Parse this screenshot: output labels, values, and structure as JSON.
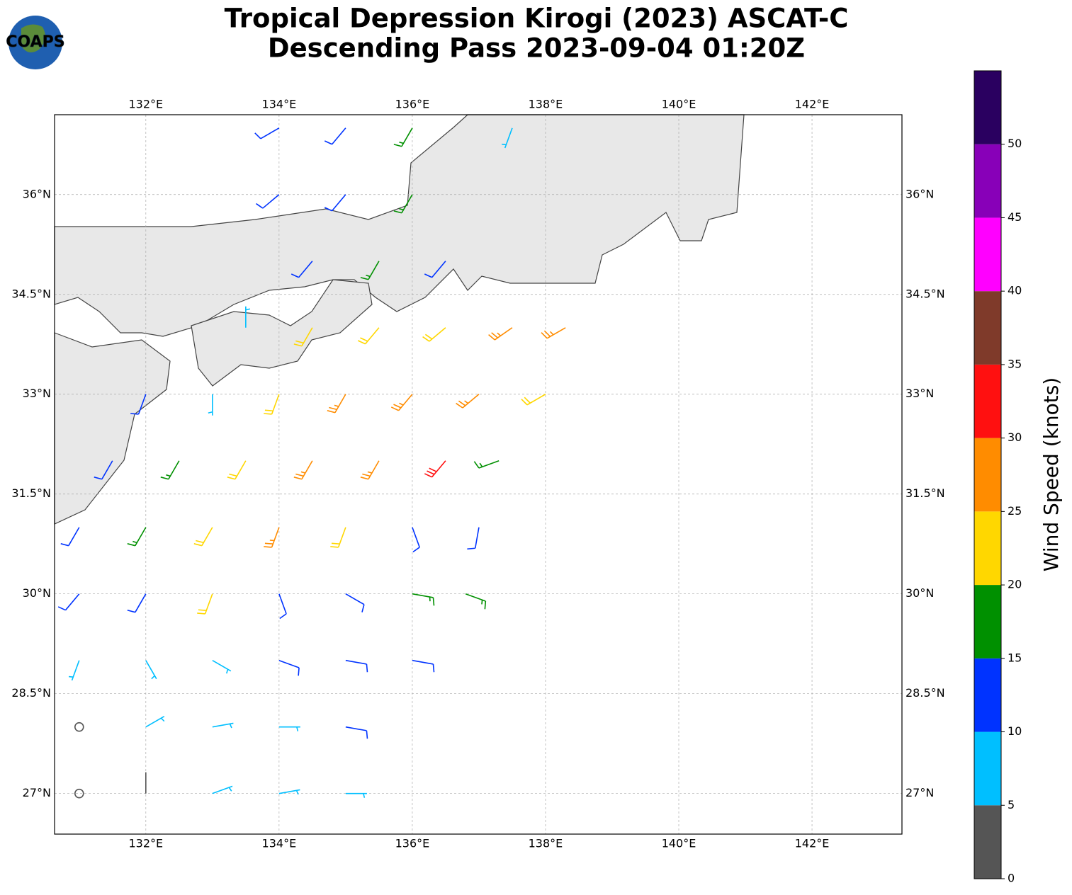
{
  "header": {
    "title_lines": [
      "Tropical Depression Kirogi (2023) ASCAT-C",
      "Descending Pass 2023-09-04 01:20Z"
    ],
    "logo": "COAPS"
  },
  "map": {
    "xlim": [
      130.63,
      143.35
    ],
    "ylim": [
      26.39,
      37.2
    ],
    "grid": true,
    "xticks": [
      {
        "value": 132,
        "label": "132°E"
      },
      {
        "value": 134,
        "label": "134°E"
      },
      {
        "value": 136,
        "label": "136°E"
      },
      {
        "value": 138,
        "label": "138°E"
      },
      {
        "value": 140,
        "label": "140°E"
      },
      {
        "value": 142,
        "label": "142°E"
      }
    ],
    "yticks": [
      {
        "value": 27,
        "label": "27°N"
      },
      {
        "value": 28.5,
        "label": "28.5°N"
      },
      {
        "value": 30,
        "label": "30°N"
      },
      {
        "value": 31.5,
        "label": "31.5°N"
      },
      {
        "value": 33,
        "label": "33°N"
      },
      {
        "value": 34.5,
        "label": "34.5°N"
      },
      {
        "value": 36,
        "label": "36°N"
      }
    ],
    "barbs": {
      "lon": [
        131,
        132,
        133,
        134,
        135,
        131,
        132,
        133,
        134,
        135,
        131,
        132,
        133,
        134,
        135,
        136,
        131,
        132,
        133,
        134,
        135,
        136,
        136.8,
        131,
        132,
        133,
        134,
        135,
        136,
        137,
        131.5,
        132.5,
        133.5,
        134.5,
        135.5,
        136.5,
        137.3,
        132,
        133,
        134,
        135,
        136,
        137,
        138,
        133.5,
        134.5,
        135.5,
        136.5,
        137.5,
        138.3,
        134.5,
        135.5,
        136.5,
        134,
        135,
        136,
        134,
        135,
        136,
        137.5
      ],
      "lat": [
        27,
        27,
        27,
        27,
        27,
        28,
        28,
        28,
        28,
        28,
        29,
        29,
        29,
        29,
        29,
        29,
        30,
        30,
        30,
        30,
        30,
        30,
        30,
        31,
        31,
        31,
        31,
        31,
        31,
        31,
        32,
        32,
        32,
        32,
        32,
        32,
        32,
        33,
        33,
        33,
        33,
        33,
        33,
        33,
        34,
        34,
        34,
        34,
        34,
        34,
        35,
        35,
        35,
        36,
        36,
        36,
        37,
        37,
        37,
        37
      ],
      "speed": [
        2,
        4,
        8,
        8,
        8,
        2,
        6,
        8,
        9,
        11,
        8,
        8,
        8,
        12,
        12,
        12,
        12,
        14,
        20,
        13,
        12,
        16,
        17,
        12,
        17,
        22,
        28,
        22,
        10,
        12,
        13,
        16,
        22,
        25,
        27,
        30,
        18,
        12,
        8,
        20,
        25,
        27,
        28,
        22,
        7,
        22,
        20,
        24,
        27,
        25,
        12,
        15,
        14,
        13,
        14,
        15,
        12,
        13,
        17,
        8
      ],
      "direction": [
        0,
        0,
        70,
        80,
        90,
        0,
        60,
        80,
        90,
        100,
        200,
        150,
        120,
        110,
        100,
        100,
        220,
        210,
        200,
        160,
        120,
        100,
        110,
        210,
        210,
        210,
        200,
        200,
        160,
        190,
        210,
        210,
        210,
        210,
        210,
        220,
        250,
        200,
        180,
        200,
        210,
        220,
        230,
        240,
        0,
        210,
        220,
        230,
        235,
        240,
        220,
        210,
        220,
        230,
        220,
        210,
        240,
        220,
        210,
        200
      ]
    }
  },
  "colorbar": {
    "label": "Wind Speed (knots)",
    "lim": [
      0,
      55
    ],
    "bounds": [
      0,
      5,
      10,
      15,
      20,
      25,
      30,
      35,
      40,
      45,
      50,
      55
    ],
    "colors": [
      "#555555",
      "#00bfff",
      "#0033ff",
      "#009000",
      "#ffd700",
      "#ff8c00",
      "#ff1010",
      "#7f3a2a",
      "#ff00ff",
      "#8800b8",
      "#2a0060"
    ],
    "ticks": [
      0,
      5,
      10,
      15,
      20,
      25,
      30,
      35,
      40,
      45,
      50
    ]
  }
}
